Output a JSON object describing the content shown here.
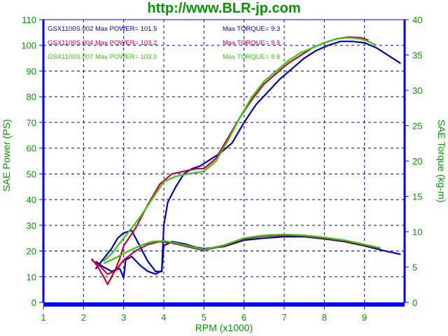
{
  "site_title": "http://www.BLR-jp.com",
  "chart_data": {
    "type": "line",
    "title": "http://www.BLR-jp.com",
    "xlabel": "RPM (x1000)",
    "ylabel_left": "SAE Power (PS)",
    "ylabel_right": "SAE Torque (kg-m)",
    "xlim": [
      1,
      10
    ],
    "ylim_left": [
      0,
      110
    ],
    "ylim_right": [
      0,
      40
    ],
    "x_ticks": [
      "1",
      "2",
      "3",
      "4",
      "5",
      "6",
      "7",
      "8",
      "9"
    ],
    "y_left_ticks": [
      "0",
      "10",
      "20",
      "30",
      "40",
      "50",
      "60",
      "70",
      "80",
      "90",
      "100",
      "110"
    ],
    "y_right_ticks": [
      "0",
      "5",
      "10",
      "15",
      "20",
      "25",
      "30",
      "35",
      "40"
    ],
    "grid": true,
    "legend_position": "top-left inside",
    "series": [
      {
        "name": "GSX1100S.002",
        "color": "#0000cc",
        "max_power_label": "Max POWER= 101.5",
        "max_torque_label": "Max TORQUE= 9.3",
        "power": [
          [
            2.3,
            13
          ],
          [
            2.5,
            17
          ],
          [
            2.7,
            21
          ],
          [
            2.85,
            25
          ],
          [
            3.0,
            27
          ],
          [
            3.2,
            28
          ],
          [
            3.4,
            22
          ],
          [
            3.6,
            16
          ],
          [
            3.8,
            12
          ],
          [
            3.95,
            12
          ],
          [
            4.0,
            30
          ],
          [
            4.1,
            39
          ],
          [
            4.3,
            45
          ],
          [
            4.5,
            50
          ],
          [
            4.7,
            52
          ],
          [
            4.9,
            53
          ],
          [
            5.0,
            54
          ],
          [
            5.2,
            56
          ],
          [
            5.4,
            58
          ],
          [
            5.7,
            62
          ],
          [
            6.0,
            70
          ],
          [
            6.3,
            77
          ],
          [
            6.6,
            82
          ],
          [
            6.9,
            87
          ],
          [
            7.2,
            91
          ],
          [
            7.5,
            95
          ],
          [
            7.8,
            98
          ],
          [
            8.1,
            100
          ],
          [
            8.4,
            101.5
          ],
          [
            8.7,
            101.5
          ],
          [
            9.0,
            101
          ],
          [
            9.3,
            99
          ],
          [
            9.6,
            96
          ],
          [
            9.9,
            93
          ]
        ],
        "torque": [
          [
            2.3,
            5.8
          ],
          [
            2.5,
            5.0
          ],
          [
            2.7,
            4.4
          ],
          [
            2.9,
            4.8
          ],
          [
            3.0,
            3.5
          ],
          [
            3.05,
            6.0
          ],
          [
            3.2,
            6.5
          ],
          [
            3.4,
            5.3
          ],
          [
            3.6,
            4.4
          ],
          [
            3.8,
            4.0
          ],
          [
            3.95,
            4.5
          ],
          [
            4.0,
            8.0
          ],
          [
            4.2,
            8.6
          ],
          [
            4.5,
            8.3
          ],
          [
            4.8,
            7.8
          ],
          [
            5.0,
            7.6
          ],
          [
            5.5,
            7.9
          ],
          [
            6.0,
            8.8
          ],
          [
            6.5,
            9.1
          ],
          [
            7.0,
            9.3
          ],
          [
            7.5,
            9.3
          ],
          [
            8.0,
            9.0
          ],
          [
            8.5,
            8.6
          ],
          [
            9.0,
            8.0
          ],
          [
            9.5,
            7.3
          ],
          [
            9.9,
            6.8
          ]
        ]
      },
      {
        "name": "GSX1100S.004",
        "color": "#cc0033",
        "max_power_label": "Max POWER= 103.2",
        "max_torque_label": "Max TORQUE= 9.5",
        "power": [
          [
            2.2,
            17
          ],
          [
            2.35,
            14
          ],
          [
            2.5,
            10
          ],
          [
            2.6,
            7
          ],
          [
            2.7,
            10
          ],
          [
            2.8,
            13
          ],
          [
            2.9,
            17
          ],
          [
            3.0,
            22
          ],
          [
            3.3,
            29
          ],
          [
            3.6,
            38
          ],
          [
            3.9,
            46
          ],
          [
            4.2,
            50
          ],
          [
            4.5,
            51
          ],
          [
            4.8,
            52
          ],
          [
            5.0,
            52
          ],
          [
            5.3,
            56
          ],
          [
            5.6,
            64
          ],
          [
            5.9,
            72
          ],
          [
            6.2,
            79
          ],
          [
            6.5,
            85
          ],
          [
            6.8,
            89
          ],
          [
            7.1,
            93
          ],
          [
            7.4,
            96
          ],
          [
            7.7,
            99
          ],
          [
            8.0,
            101
          ],
          [
            8.3,
            102.5
          ],
          [
            8.6,
            103.2
          ],
          [
            8.9,
            103
          ],
          [
            9.1,
            102
          ]
        ],
        "torque": [
          [
            2.2,
            6.0
          ],
          [
            2.4,
            5.2
          ],
          [
            2.6,
            4.0
          ],
          [
            2.8,
            4.5
          ],
          [
            3.0,
            6.0
          ],
          [
            3.3,
            7.3
          ],
          [
            3.6,
            8.2
          ],
          [
            3.9,
            8.6
          ],
          [
            4.2,
            8.4
          ],
          [
            4.5,
            8.0
          ],
          [
            4.8,
            7.6
          ],
          [
            5.0,
            7.4
          ],
          [
            5.5,
            8.0
          ],
          [
            6.0,
            9.0
          ],
          [
            6.5,
            9.4
          ],
          [
            7.0,
            9.5
          ],
          [
            7.5,
            9.4
          ],
          [
            8.0,
            9.1
          ],
          [
            8.5,
            8.7
          ],
          [
            9.0,
            8.1
          ],
          [
            9.4,
            7.6
          ]
        ]
      },
      {
        "name": "GSX1100S.007",
        "color": "#33cc00",
        "max_power_label": "Max POWER= 103.0",
        "max_torque_label": "Max TORQUE= 9.6",
        "power": [
          [
            2.5,
            16
          ],
          [
            2.7,
            19
          ],
          [
            2.9,
            23
          ],
          [
            3.1,
            27
          ],
          [
            3.4,
            33
          ],
          [
            3.7,
            40
          ],
          [
            4.0,
            47
          ],
          [
            4.3,
            49
          ],
          [
            4.6,
            50
          ],
          [
            5.0,
            51
          ],
          [
            5.3,
            55
          ],
          [
            5.6,
            63
          ],
          [
            5.9,
            72
          ],
          [
            6.2,
            80
          ],
          [
            6.5,
            86
          ],
          [
            6.8,
            90
          ],
          [
            7.1,
            94
          ],
          [
            7.4,
            97
          ],
          [
            7.7,
            99
          ],
          [
            8.0,
            101
          ],
          [
            8.3,
            102.5
          ],
          [
            8.6,
            103
          ],
          [
            8.9,
            102.5
          ],
          [
            9.1,
            101.5
          ],
          [
            9.3,
            100
          ]
        ],
        "torque": [
          [
            2.5,
            5.5
          ],
          [
            2.8,
            6.3
          ],
          [
            3.1,
            7.2
          ],
          [
            3.4,
            8.0
          ],
          [
            3.7,
            8.6
          ],
          [
            4.0,
            8.7
          ],
          [
            4.3,
            8.4
          ],
          [
            4.6,
            8.0
          ],
          [
            5.0,
            7.5
          ],
          [
            5.5,
            8.1
          ],
          [
            6.0,
            9.1
          ],
          [
            6.5,
            9.5
          ],
          [
            7.0,
            9.6
          ],
          [
            7.5,
            9.5
          ],
          [
            8.0,
            9.2
          ],
          [
            8.5,
            8.8
          ],
          [
            9.0,
            8.2
          ],
          [
            9.4,
            7.7
          ]
        ]
      }
    ]
  }
}
